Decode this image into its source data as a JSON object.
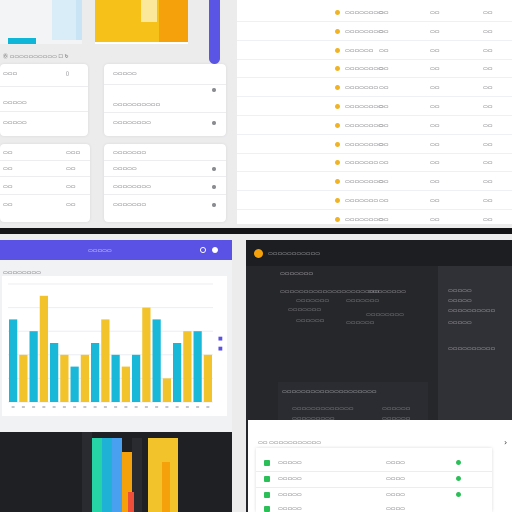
{
  "colors": {
    "accent_purple": "#5a52e5",
    "cyan": "#1ab8d8",
    "yellow": "#f2c32a",
    "orange": "#f5a10b",
    "gold_dot": "#f0b323",
    "green": "#2bbf58",
    "dark_bg": "#26272b"
  },
  "top_left": {
    "caption": "Ⓑ ▭▭▭▭▭▭▭▭▭▭ ☐ ↻",
    "card_a": {
      "rows": [
        {
          "label": "▭▭▭",
          "icon": "▯"
        },
        {
          "label": "▭▭▭▭▭"
        },
        {
          "label": "▭▭▭▭▭"
        }
      ]
    },
    "card_b": {
      "rows": [
        {
          "label": "▭▭▭▭▭"
        },
        {
          "label": "▭▭▭▭▭▭▭▭▭▭"
        },
        {
          "label": "▭▭▭▭▭▭▭▭"
        }
      ]
    },
    "card_c": {
      "rows": [
        {
          "left": "▭▭",
          "right": "▭▭▭"
        },
        {
          "left": "▭▭",
          "right": "▭▭"
        },
        {
          "left": "▭▭",
          "right": "▭▭"
        },
        {
          "left": "▭▭",
          "right": "▭▭"
        }
      ]
    },
    "card_d": {
      "rows": [
        {
          "label": "▭▭▭▭▭▭▭"
        },
        {
          "label": "▭▭▭▭▭"
        },
        {
          "label": "▭▭▭▭▭▭▭▭"
        },
        {
          "label": "▭▭▭▭▭▭▭"
        }
      ]
    }
  },
  "list_panel": {
    "rows": [
      {
        "name": "▭▭▭▭▭▭▭▭",
        "c1": "▭▭",
        "c2": "▭▭",
        "c3": "▭▭"
      },
      {
        "name": "▭▭▭▭▭▭▭▭",
        "c1": "▭▭",
        "c2": "▭▭",
        "c3": "▭▭"
      },
      {
        "name": "▭▭▭▭▭▭",
        "c1": "▭▭",
        "c2": "▭▭",
        "c3": "▭▭"
      },
      {
        "name": "▭▭▭▭▭▭▭▭",
        "c1": "▭▭",
        "c2": "▭▭",
        "c3": "▭▭"
      },
      {
        "name": "▭▭▭▭▭▭▭",
        "c1": "▭▭",
        "c2": "▭▭",
        "c3": "▭▭"
      },
      {
        "name": "▭▭▭▭▭▭▭▭",
        "c1": "▭▭",
        "c2": "▭▭",
        "c3": "▭▭"
      },
      {
        "name": "▭▭▭▭▭▭▭▭",
        "c1": "▭▭",
        "c2": "▭▭",
        "c3": "▭▭"
      },
      {
        "name": "▭▭▭▭▭▭▭▭",
        "c1": "▭▭",
        "c2": "▭▭",
        "c3": "▭▭"
      },
      {
        "name": "▭▭▭▭▭▭▭",
        "c1": "▭▭",
        "c2": "▭▭",
        "c3": "▭▭"
      },
      {
        "name": "▭▭▭▭▭▭▭▭",
        "c1": "▭▭",
        "c2": "▭▭",
        "c3": "▭▭"
      },
      {
        "name": "▭▭▭▭▭▭▭",
        "c1": "▭▭",
        "c2": "▭▭",
        "c3": "▭▭"
      },
      {
        "name": "▭▭▭▭▭▭▭▭",
        "c1": "▭▭",
        "c2": "▭▭",
        "c3": "▭▭"
      }
    ]
  },
  "chart_window": {
    "header_title": "▭▭▭▭▭",
    "subtitle": "▭▭▭▭▭▭▭▭",
    "filter_label": "▭▭▭▭▭▭",
    "legend_marks": [
      "■",
      "■"
    ]
  },
  "chart_data": {
    "type": "bar",
    "title": "",
    "xlabel": "",
    "ylabel": "",
    "categories": [
      "",
      "",
      "",
      "",
      "",
      "",
      "",
      "",
      "",
      "",
      "",
      "",
      "",
      "",
      "",
      "",
      "",
      "",
      "",
      ""
    ],
    "series": [
      {
        "values": [
          7,
          0,
          6,
          0,
          5,
          0,
          3,
          0,
          5,
          0,
          4,
          0,
          4,
          0,
          7,
          0,
          5,
          0,
          6,
          0
        ]
      },
      {
        "values": [
          0,
          4,
          0,
          9,
          0,
          4,
          0,
          4,
          0,
          7,
          0,
          3,
          0,
          8,
          0,
          2,
          0,
          6,
          0,
          4
        ]
      }
    ],
    "ylim": [
      0,
      10
    ],
    "grid": true
  },
  "dark_window": {
    "title": "▭▭▭▭▭▭▭▭▭▭▭",
    "heading": "▭▭▭▭▭▭▭",
    "table_header": [
      "▭▭▭▭▭▭▭▭▭▭▭▭▭▭▭▭▭▭▭▭▭",
      "▭▭▭▭▭▭▭▭"
    ],
    "rows": [
      {
        "a": "▭▭▭▭▭▭▭",
        "b": "▭▭▭▭▭▭▭"
      },
      {
        "a": "▭▭▭▭▭▭▭",
        "b": "▭▭▭▭▭▭▭▭"
      },
      {
        "a": "▭▭▭▭▭▭",
        "b": "▭▭▭▭▭▭"
      }
    ],
    "side": [
      "▭▭▭▭▭",
      "▭▭▭▭▭",
      "▭▭▭▭▭▭▭▭▭▭",
      "▭▭▭▭▭",
      "▭▭▭▭▭▭▭▭▭▭"
    ],
    "section_header": "▭▭▭▭▭▭▭▭▭▭▭▭▭▭▭▭▭▭▭▭",
    "section_rows": [
      {
        "a": "▭▭▭▭▭▭▭▭▭▭▭▭▭",
        "b": "▭▭▭▭▭▭"
      },
      {
        "a": "▭▭▭▭▭▭▭▭▭",
        "b": "▭▭▭▭▭▭"
      }
    ]
  },
  "popup": {
    "title": "▭▭ ▭▭▭▭▭▭▭▭▭▭▭",
    "rows": [
      {
        "label": "▭▭▭▭▭",
        "value": "▭▭▭▭"
      },
      {
        "label": "▭▭▭▭▭",
        "value": "▭▭▭▭"
      },
      {
        "label": "▭▭▭▭▭",
        "value": "▭▭▭▭"
      },
      {
        "label": "▭▭▭▭▭",
        "value": "▭▭▭▭"
      }
    ]
  }
}
